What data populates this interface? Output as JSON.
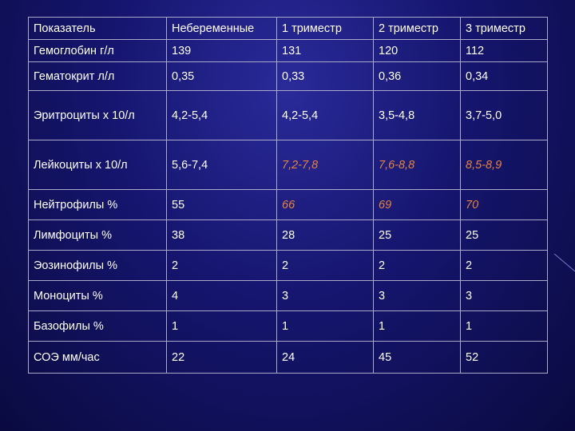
{
  "table": {
    "headers": [
      "Показатель",
      "Небеременные",
      "1 триместр",
      "2 триместр",
      "3 триместр"
    ],
    "rows": [
      [
        "Гемоглобин г/л",
        "139",
        "131",
        "120",
        "112"
      ],
      [
        "Гематокрит л/л",
        "0,35",
        "0,33",
        "0,36",
        "0,34"
      ],
      [
        "Эритроциты х 10/л",
        "4,2-5,4",
        "4,2-5,4",
        "3,5-4,8",
        "3,7-5,0"
      ],
      [
        "Лейкоциты х 10/л",
        "5,6-7,4",
        "7,2-7,8",
        "7,6-8,8",
        "8,5-8,9"
      ],
      [
        "Нейтрофилы %",
        "55",
        "66",
        "69",
        "70"
      ],
      [
        "Лимфоциты %",
        "38",
        "28",
        "25",
        "25"
      ],
      [
        "Эозинофилы %",
        "2",
        "2",
        "2",
        "2"
      ],
      [
        "Моноциты %",
        "4",
        "3",
        "3",
        "3"
      ],
      [
        "Базофилы %",
        "1",
        "1",
        "1",
        "1"
      ],
      [
        "СОЭ мм/час",
        "22",
        "24",
        "45",
        "52"
      ]
    ]
  },
  "colors": {
    "text": "#ffffff",
    "highlight": "#e8833a",
    "border": "#a9a9c9",
    "background": "#15156e"
  }
}
